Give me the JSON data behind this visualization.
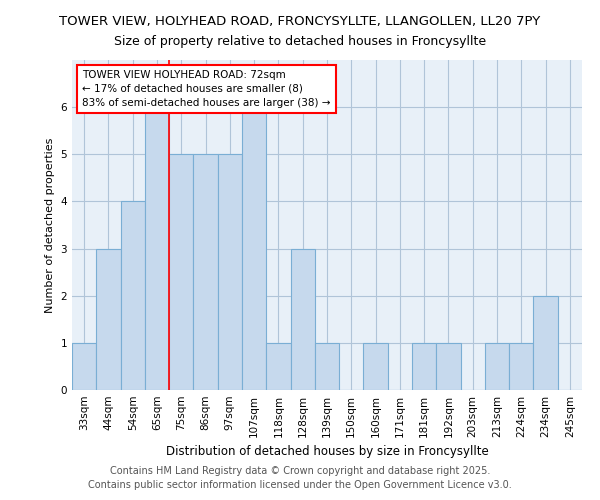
{
  "title_line1": "TOWER VIEW, HOLYHEAD ROAD, FRONCYSYLLTE, LLANGOLLEN, LL20 7PY",
  "title_line2": "Size of property relative to detached houses in Froncysyllte",
  "xlabel": "Distribution of detached houses by size in Froncysyllte",
  "ylabel": "Number of detached properties",
  "categories": [
    "33sqm",
    "44sqm",
    "54sqm",
    "65sqm",
    "75sqm",
    "86sqm",
    "97sqm",
    "107sqm",
    "118sqm",
    "128sqm",
    "139sqm",
    "150sqm",
    "160sqm",
    "171sqm",
    "181sqm",
    "192sqm",
    "203sqm",
    "213sqm",
    "224sqm",
    "234sqm",
    "245sqm"
  ],
  "values": [
    1,
    3,
    4,
    6,
    5,
    5,
    5,
    6,
    1,
    3,
    1,
    0,
    1,
    0,
    1,
    1,
    0,
    1,
    1,
    2,
    0
  ],
  "bar_color": "#c6d9ed",
  "bar_edge_color": "#7aaed4",
  "annotation_text": "TOWER VIEW HOLYHEAD ROAD: 72sqm\n← 17% of detached houses are smaller (8)\n83% of semi-detached houses are larger (38) →",
  "annotation_box_color": "white",
  "annotation_box_edge_color": "red",
  "red_line_index": 3.5,
  "ylim": [
    0,
    7
  ],
  "yticks": [
    0,
    1,
    2,
    3,
    4,
    5,
    6,
    7
  ],
  "grid_color": "#b0c4d8",
  "background_color": "#e8f0f8",
  "footer_line1": "Contains HM Land Registry data © Crown copyright and database right 2025.",
  "footer_line2": "Contains public sector information licensed under the Open Government Licence v3.0.",
  "title_fontsize": 9.5,
  "subtitle_fontsize": 9,
  "annotation_fontsize": 7.5,
  "footer_fontsize": 7,
  "ylabel_fontsize": 8,
  "xlabel_fontsize": 8.5,
  "tick_fontsize": 7.5
}
